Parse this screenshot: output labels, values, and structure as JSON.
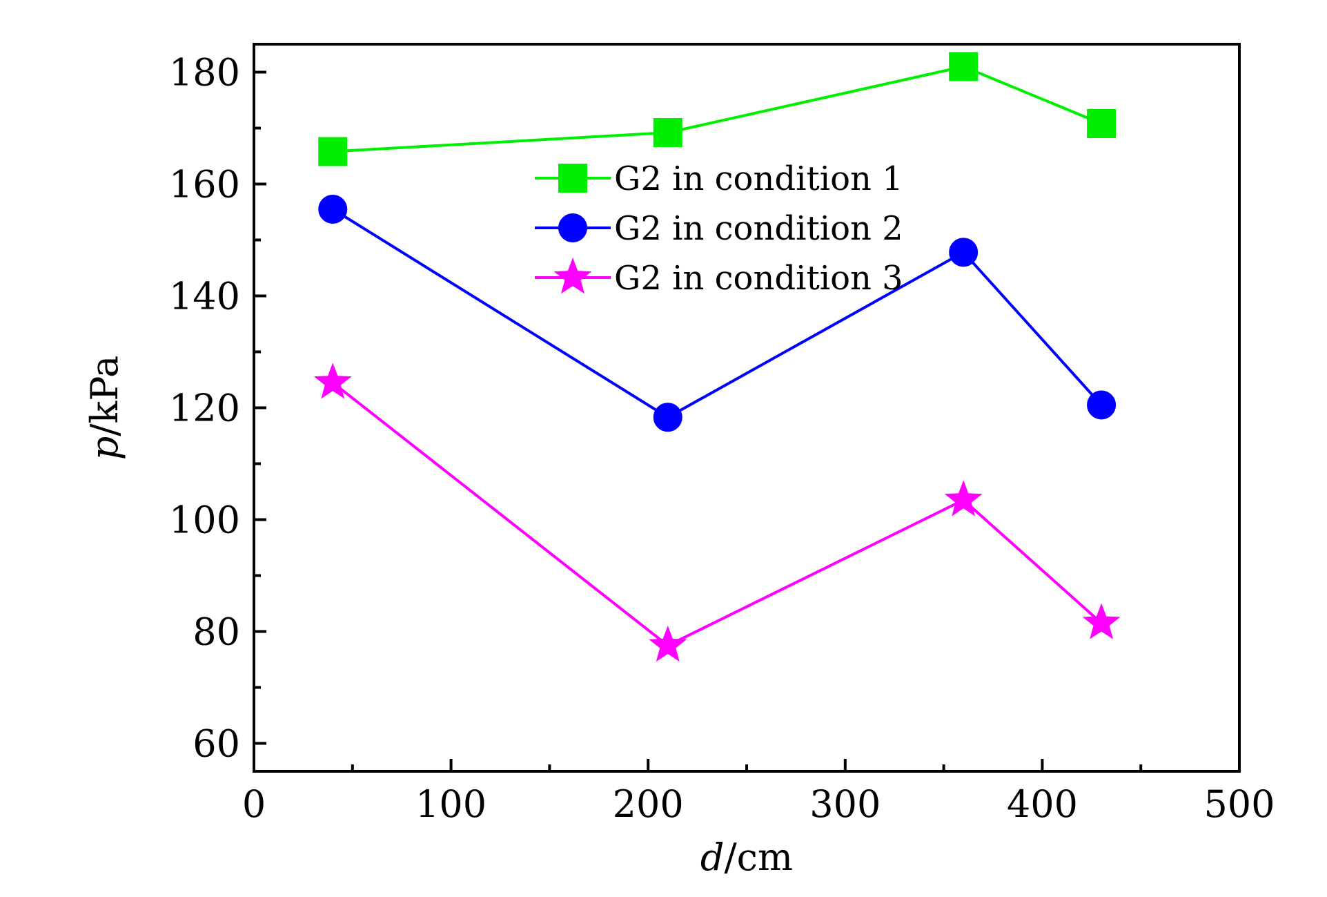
{
  "chart_data": {
    "type": "line",
    "xlabel_italic": "d",
    "xlabel_unit": "/cm",
    "ylabel_italic": "p",
    "ylabel_unit": "/kPa",
    "xlim": [
      0,
      500
    ],
    "ylim": [
      55,
      185
    ],
    "xticks": [
      0,
      100,
      200,
      300,
      400,
      500
    ],
    "yticks": [
      60,
      80,
      100,
      120,
      140,
      160,
      180
    ],
    "xtick_labels": [
      "0",
      "100",
      "200",
      "300",
      "400",
      "500"
    ],
    "ytick_labels": [
      "60",
      "80",
      "100",
      "120",
      "140",
      "160",
      "180"
    ],
    "x": [
      40,
      210,
      360,
      430
    ],
    "grid": false,
    "legend_position": "top-center",
    "series": [
      {
        "name": "G2 in condition 1",
        "values": [
          165.8,
          169.2,
          181.0,
          170.8
        ],
        "color": "#00ee00",
        "marker": "square"
      },
      {
        "name": "G2 in condition 2",
        "values": [
          155.5,
          118.3,
          147.8,
          120.5
        ],
        "color": "#0000ff",
        "marker": "circle"
      },
      {
        "name": "G2 in condition 3",
        "values": [
          124.5,
          77.5,
          103.5,
          81.5
        ],
        "color": "#ff00ff",
        "marker": "star"
      }
    ]
  }
}
